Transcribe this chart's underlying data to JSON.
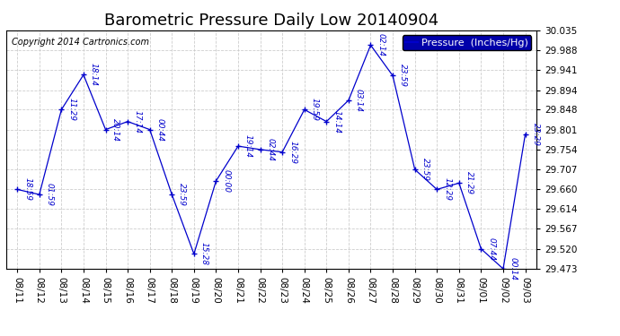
{
  "title": "Barometric Pressure Daily Low 20140904",
  "copyright": "Copyright 2014 Cartronics.com",
  "legend_label": "Pressure  (Inches/Hg)",
  "ylim": [
    29.473,
    30.035
  ],
  "yticks": [
    29.473,
    29.52,
    29.567,
    29.614,
    29.66,
    29.707,
    29.754,
    29.801,
    29.848,
    29.894,
    29.941,
    29.988,
    30.035
  ],
  "line_color": "#0000cc",
  "background_color": "#ffffff",
  "grid_color": "#c8c8c8",
  "dates": [
    "08/11",
    "08/12",
    "08/13",
    "08/14",
    "08/15",
    "08/16",
    "08/17",
    "08/18",
    "08/19",
    "08/20",
    "08/21",
    "08/22",
    "08/23",
    "08/24",
    "08/25",
    "08/26",
    "08/27",
    "08/28",
    "08/29",
    "08/30",
    "08/31",
    "09/01",
    "09/02",
    "09/03"
  ],
  "values": [
    29.66,
    29.648,
    29.848,
    29.93,
    29.801,
    29.82,
    29.801,
    29.648,
    29.508,
    29.68,
    29.762,
    29.754,
    29.748,
    29.848,
    29.82,
    29.87,
    30.0,
    29.928,
    29.707,
    29.66,
    29.675,
    29.52,
    29.473,
    29.79
  ],
  "time_labels": [
    "18:59",
    "01:59",
    "11:29",
    "18:14",
    "20:14",
    "17:14",
    "00:44",
    "23:59",
    "15:28",
    "00:00",
    "19:14",
    "02:44",
    "16:29",
    "19:59",
    "14:14",
    "03:14",
    "02:14",
    "23:59",
    "23:59",
    "12:29",
    "21:29",
    "07:44",
    "00:14",
    "23:29"
  ],
  "title_fontsize": 13,
  "tick_fontsize": 7.5,
  "label_fontsize": 6.5,
  "copyright_fontsize": 7,
  "legend_fontsize": 8
}
